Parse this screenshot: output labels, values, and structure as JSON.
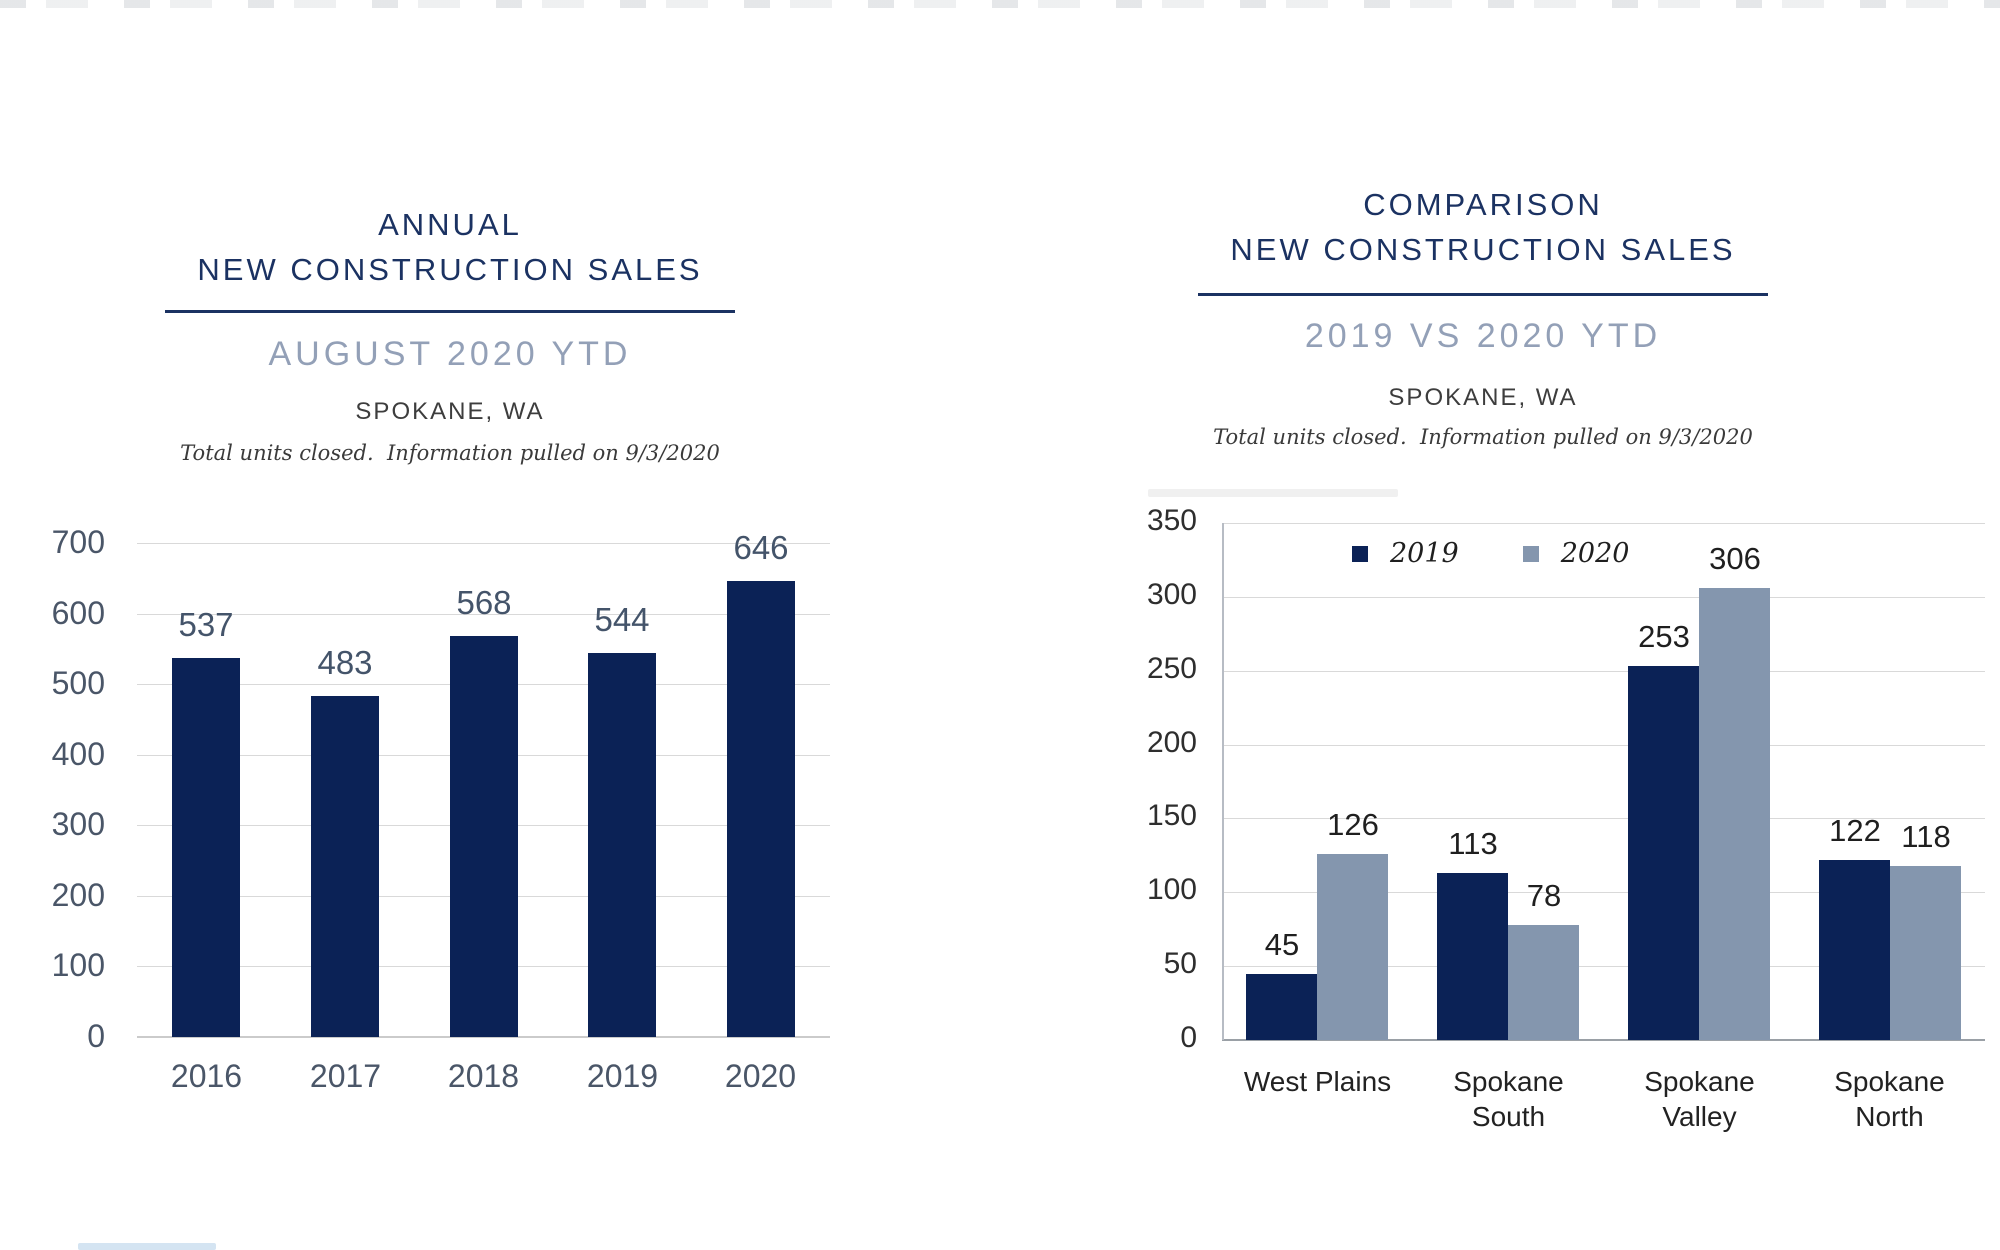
{
  "left_chart": {
    "title_line1": "ANNUAL",
    "title_line2": "NEW CONSTRUCTION SALES",
    "subtitle": "AUGUST 2020 YTD",
    "location": "SPOKANE, WA",
    "note": "Total units closed.  Information pulled on 9/3/2020"
  },
  "right_chart": {
    "title_line1": "COMPARISON",
    "title_line2": "NEW CONSTRUCTION SALES",
    "subtitle": "2019 VS 2020 YTD",
    "location": "SPOKANE, WA",
    "note": "Total units closed.  Information pulled on 9/3/2020"
  },
  "colors": {
    "navy_bar": "#0b2256",
    "light_blue_gray_bar": "#8496ae",
    "title_navy": "#1b3262",
    "subtitle_gray": "#93a0b7",
    "left_axis_text": "#4a5668",
    "right_axis_text": "#2e2e2e",
    "gridline": "#d9d9d9"
  },
  "chart_data": [
    {
      "type": "bar",
      "title": "ANNUAL NEW CONSTRUCTION SALES",
      "subtitle": "AUGUST 2020 YTD — SPOKANE, WA",
      "categories": [
        "2016",
        "2017",
        "2018",
        "2019",
        "2020"
      ],
      "values": [
        537,
        483,
        568,
        544,
        646
      ],
      "data_labels": true,
      "bar_color": "#0b2256",
      "xlabel": "",
      "ylabel": "",
      "ylim": [
        0,
        700
      ],
      "ytick_step": 100,
      "grid": true,
      "legend_position": "none"
    },
    {
      "type": "bar",
      "title": "COMPARISON NEW CONSTRUCTION SALES",
      "subtitle": "2019 VS 2020 YTD — SPOKANE, WA",
      "categories": [
        "West Plains",
        "Spokane South",
        "Spokane Valley",
        "Spokane North"
      ],
      "categories_lines": [
        [
          "West Plains"
        ],
        [
          "Spokane",
          "South"
        ],
        [
          "Spokane",
          "Valley"
        ],
        [
          "Spokane",
          "North"
        ]
      ],
      "series": [
        {
          "name": "2019",
          "color": "#0b2256",
          "values": [
            45,
            113,
            253,
            122
          ]
        },
        {
          "name": "2020",
          "color": "#8496ae",
          "values": [
            126,
            78,
            306,
            118
          ]
        }
      ],
      "data_labels": true,
      "xlabel": "",
      "ylabel": "",
      "ylim": [
        0,
        350
      ],
      "ytick_step": 50,
      "grid": true,
      "legend_position": "top"
    }
  ]
}
